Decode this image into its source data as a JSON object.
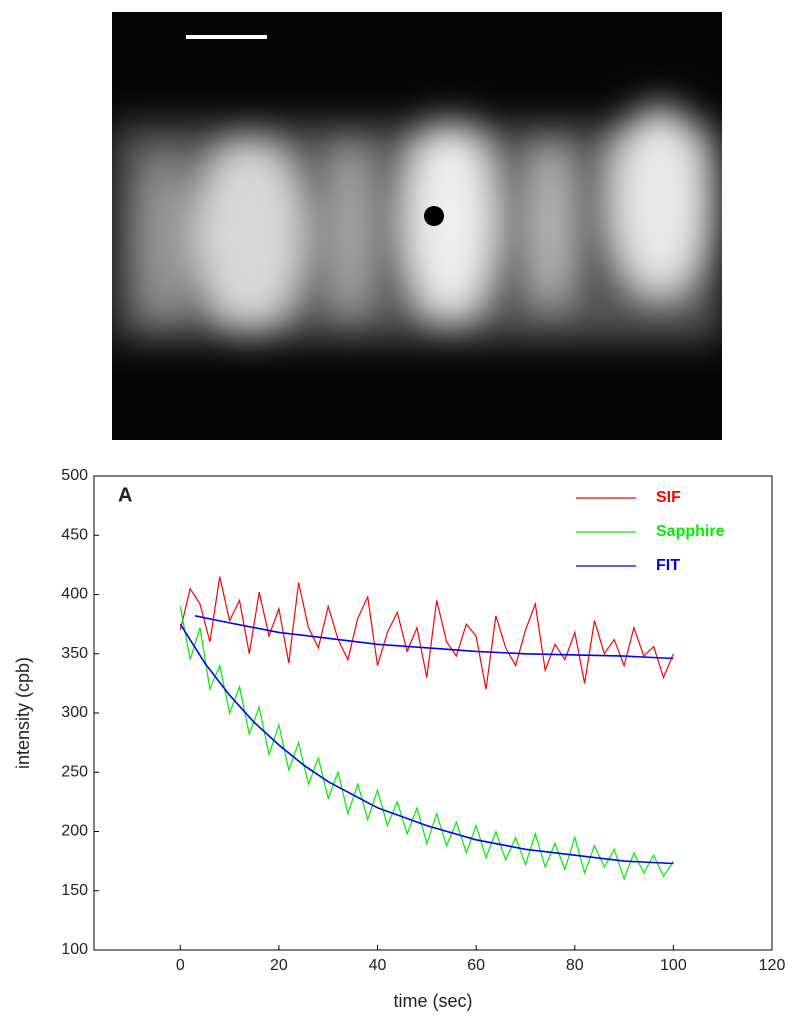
{
  "chart_data": {
    "type": "line",
    "panel_label": "A",
    "xlabel": "time (sec)",
    "ylabel": "intensity (cpb)",
    "xlim": [
      -17.5,
      120
    ],
    "ylim": [
      100,
      500
    ],
    "xticks": [
      0,
      20,
      40,
      60,
      80,
      100,
      120
    ],
    "yticks": [
      100,
      150,
      200,
      250,
      300,
      350,
      400,
      450,
      500
    ],
    "legend": "upper right",
    "x": [
      0,
      2,
      4,
      6,
      8,
      10,
      12,
      14,
      16,
      18,
      20,
      22,
      24,
      26,
      28,
      30,
      32,
      34,
      36,
      38,
      40,
      42,
      44,
      46,
      48,
      50,
      52,
      54,
      56,
      58,
      60,
      62,
      64,
      66,
      68,
      70,
      72,
      74,
      76,
      78,
      80,
      82,
      84,
      86,
      88,
      90,
      92,
      94,
      96,
      98,
      100
    ],
    "series": [
      {
        "name": "SIF",
        "color": "#ff0000",
        "values": [
          370,
          405,
          392,
          360,
          415,
          378,
          395,
          350,
          402,
          365,
          388,
          342,
          410,
          372,
          355,
          390,
          362,
          345,
          380,
          398,
          340,
          368,
          385,
          352,
          372,
          330,
          395,
          360,
          348,
          375,
          365,
          320,
          382,
          355,
          340,
          370,
          392,
          336,
          358,
          345,
          368,
          325,
          378,
          350,
          362,
          340,
          372,
          348,
          356,
          330,
          350
        ]
      },
      {
        "name": "Sapphire",
        "color": "#00ee00",
        "values": [
          390,
          345,
          372,
          320,
          340,
          300,
          322,
          282,
          305,
          265,
          290,
          252,
          275,
          240,
          262,
          228,
          250,
          215,
          240,
          210,
          235,
          205,
          225,
          198,
          220,
          190,
          215,
          188,
          208,
          182,
          205,
          178,
          200,
          176,
          195,
          172,
          198,
          170,
          190,
          168,
          195,
          165,
          188,
          170,
          185,
          160,
          182,
          165,
          180,
          162,
          175
        ]
      },
      {
        "name": "FIT",
        "color": "#0000ff",
        "x": [
          3,
          10,
          20,
          30,
          40,
          50,
          60,
          70,
          80,
          90,
          100,
          null,
          0,
          5,
          10,
          15,
          20,
          25,
          30,
          40,
          50,
          60,
          70,
          80,
          90,
          100
        ],
        "values": [
          382,
          376,
          368,
          363,
          358,
          355,
          352,
          350,
          349,
          348,
          346,
          null,
          375,
          342,
          315,
          292,
          273,
          256,
          242,
          220,
          205,
          193,
          185,
          180,
          175,
          173
        ]
      }
    ]
  }
}
